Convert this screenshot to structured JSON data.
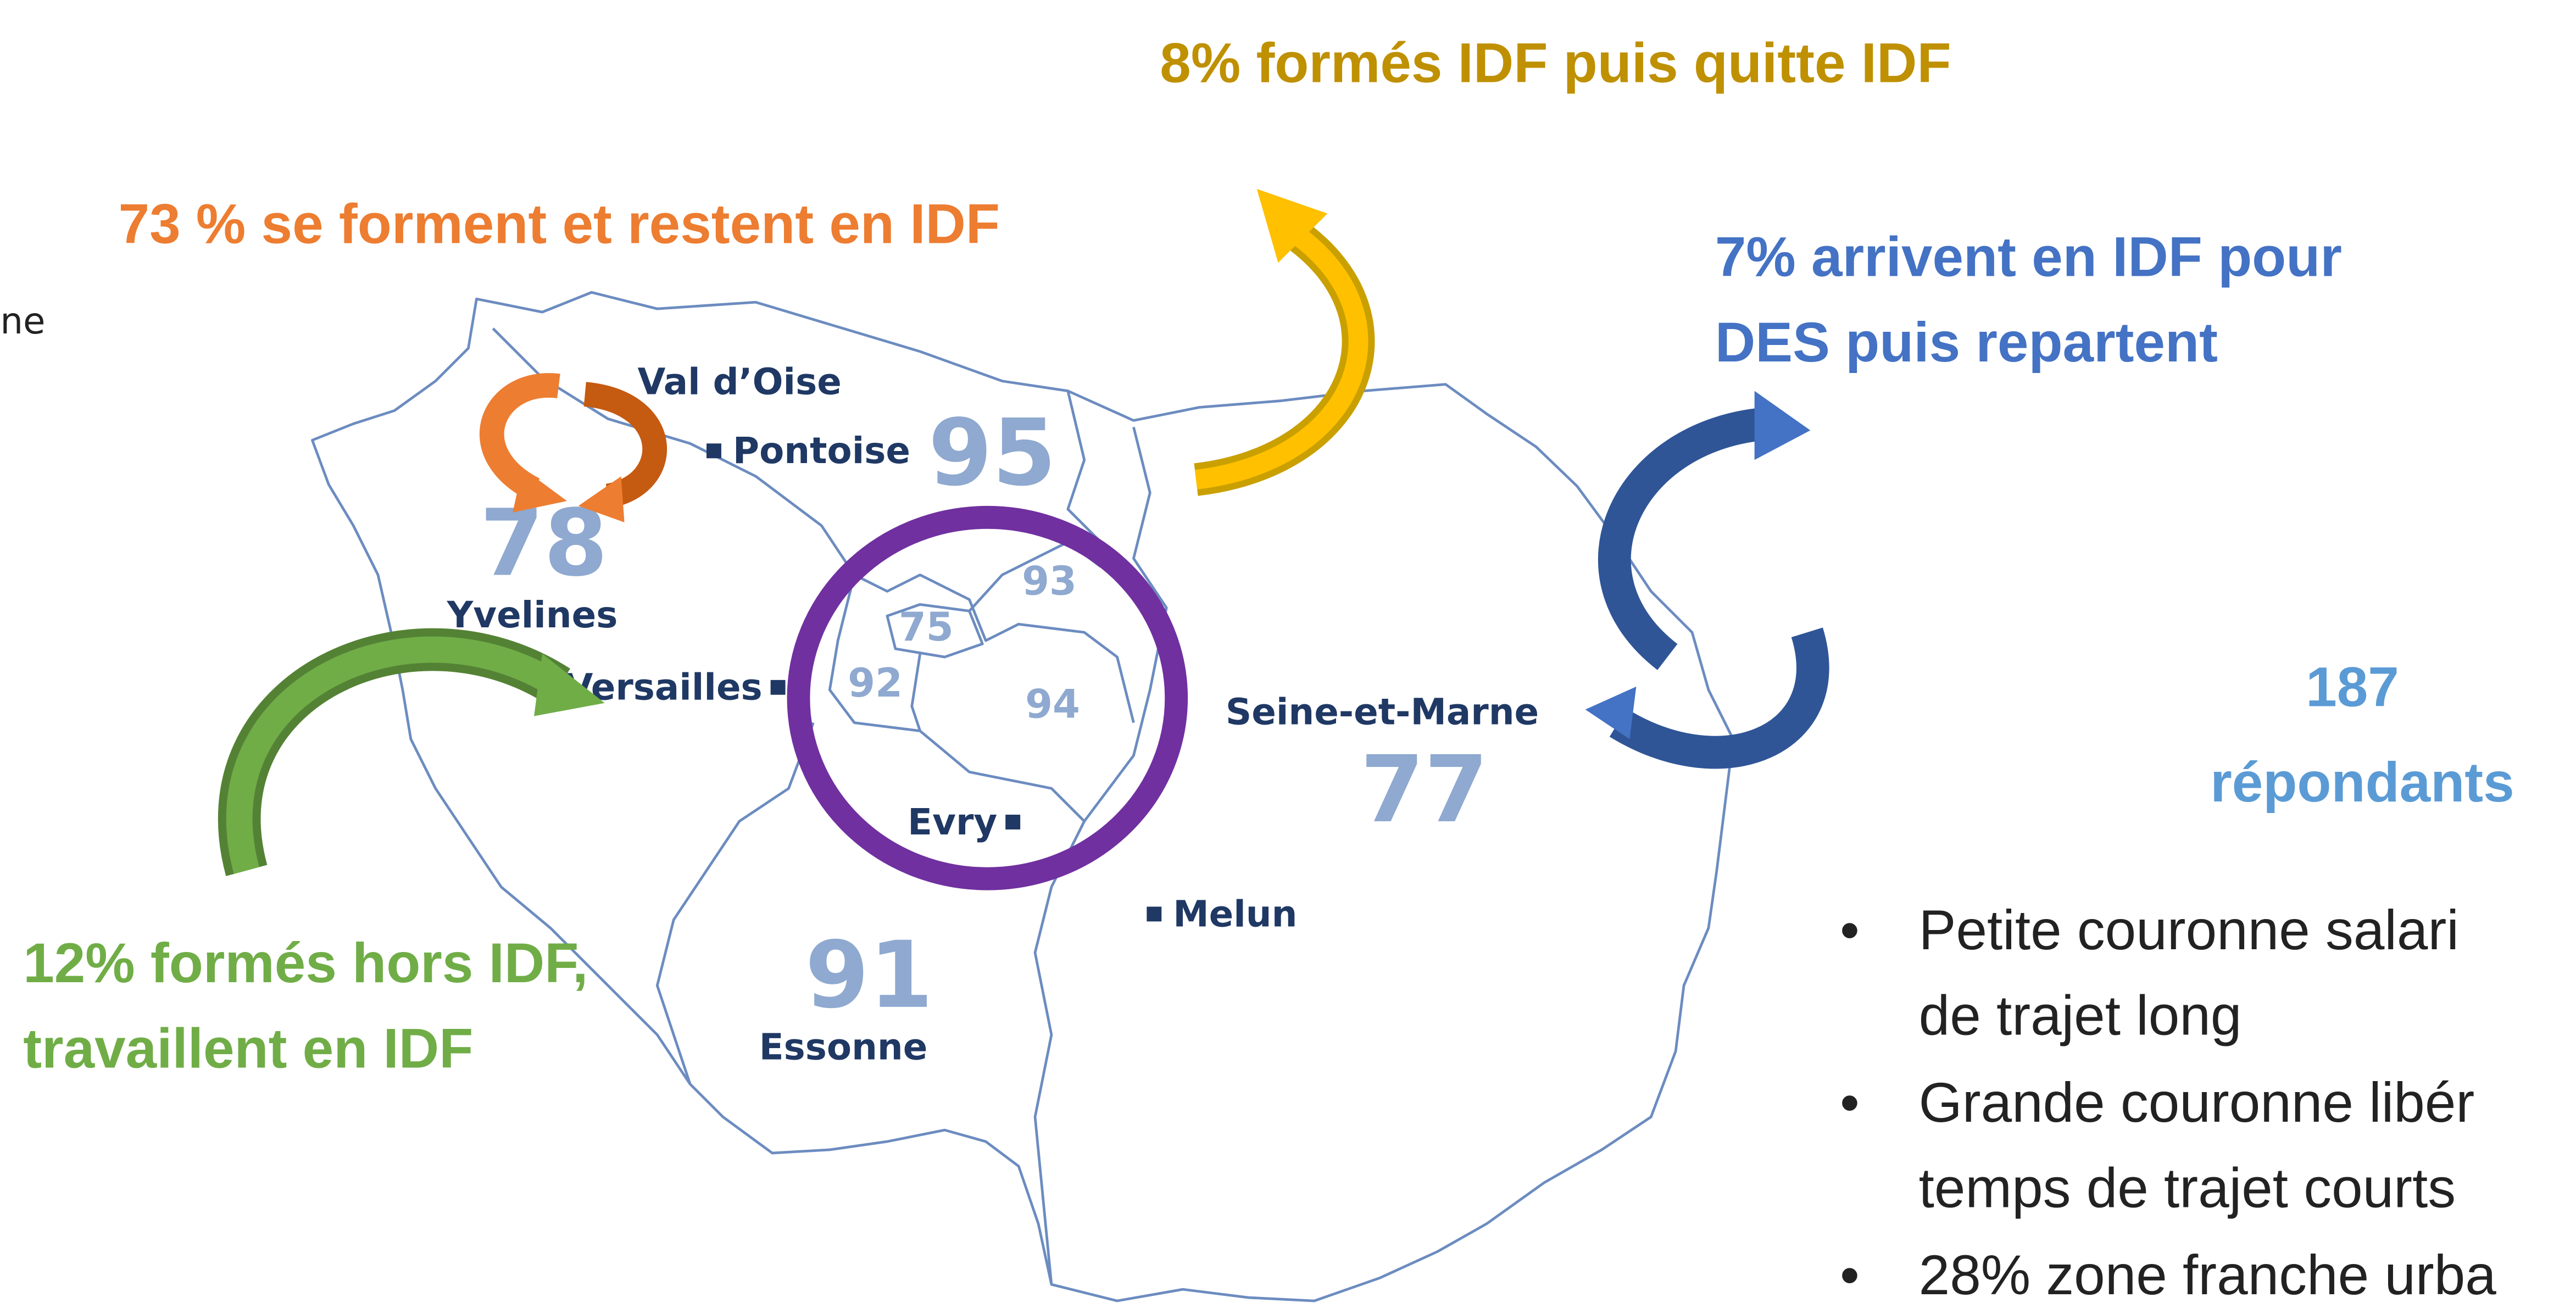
{
  "fragment": "ne",
  "annotations": {
    "top": "8% formés IDF puis quitte IDF",
    "stay": "73 % se forment et restent en IDF",
    "des": [
      "7% arrivent en IDF pour",
      "DES puis repartent"
    ],
    "outside": [
      "12% formés hors IDF,",
      "travaillent en IDF"
    ]
  },
  "respondents": [
    "187",
    "répondants"
  ],
  "bullets": [
    [
      "Petite couronne salari",
      "de trajet long"
    ],
    [
      "Grande couronne libér",
      "temps de trajet courts"
    ],
    [
      "28% zone franche urba"
    ]
  ],
  "map": {
    "departments": [
      {
        "number": "95",
        "name": "Val d’Oise"
      },
      {
        "number": "78",
        "name": "Yvelines"
      },
      {
        "number": "75"
      },
      {
        "number": "92"
      },
      {
        "number": "93"
      },
      {
        "number": "94"
      },
      {
        "number": "77",
        "name": "Seine-et-Marne"
      },
      {
        "number": "91",
        "name": "Essonne"
      }
    ],
    "cities": [
      "Pontoise",
      "Versailles",
      "Evry",
      "Melun"
    ]
  }
}
